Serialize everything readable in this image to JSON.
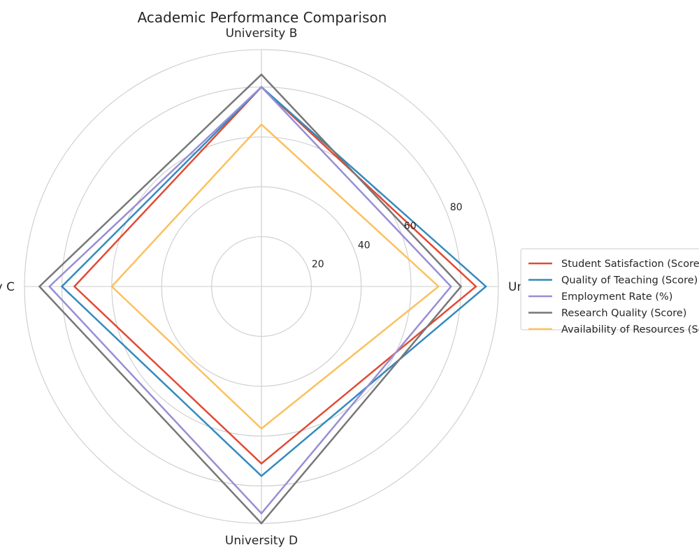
{
  "chart_data": {
    "type": "radar",
    "title": "Academic Performance Comparison",
    "categories": [
      "University A",
      "University B",
      "University C",
      "University D"
    ],
    "radial_ticks": [
      20,
      40,
      60,
      80
    ],
    "rlim": [
      0,
      95
    ],
    "grid": true,
    "legend_position": "center-right",
    "series": [
      {
        "name": "Student Satisfaction (Score)",
        "color": "#E24A33",
        "values": [
          86,
          80,
          75,
          71
        ]
      },
      {
        "name": "Quality of Teaching (Score)",
        "color": "#348ABD",
        "values": [
          90,
          80,
          80,
          76
        ]
      },
      {
        "name": "Employment Rate (%)",
        "color": "#988ED5",
        "values": [
          76,
          80,
          85,
          91
        ]
      },
      {
        "name": "Research Quality (Score)",
        "color": "#777777",
        "values": [
          80,
          85,
          89,
          95
        ]
      },
      {
        "name": "Availability of Resources (Score)",
        "color": "#FBC15E",
        "values": [
          71,
          65,
          60,
          57
        ]
      }
    ]
  }
}
